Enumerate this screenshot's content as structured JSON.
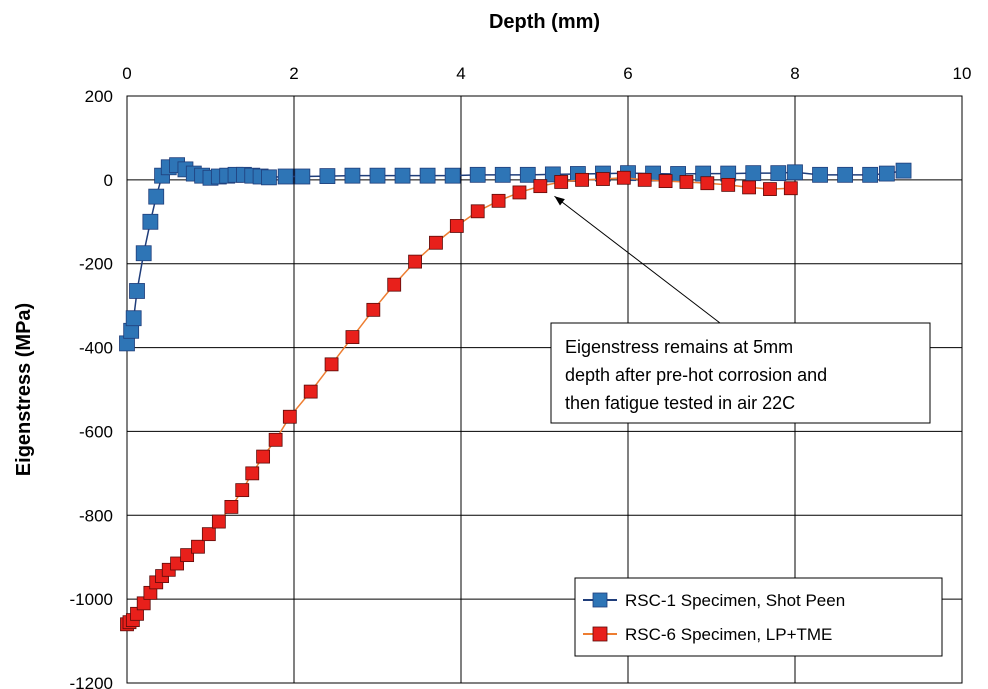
{
  "chart_data": {
    "type": "scatter",
    "title": "",
    "xlabel": "Depth (mm)",
    "ylabel": "Eigenstress (MPa)",
    "xlim": [
      0,
      10
    ],
    "ylim": [
      -1200,
      200
    ],
    "x_ticks": [
      "0",
      "2",
      "4",
      "6",
      "8",
      "10"
    ],
    "y_ticks": [
      "200",
      "0",
      "-200",
      "-400",
      "-600",
      "-800",
      "-1000",
      "-1200"
    ],
    "x_axis_position": "top",
    "grid": true,
    "legend_position": "bottom-right",
    "series": [
      {
        "name": "RSC-1 Specimen, Shot Peen",
        "color": "#2e75b6",
        "line_color": "#1f3d7a",
        "marker": "square",
        "points": [
          [
            0.0,
            -390
          ],
          [
            0.05,
            -360
          ],
          [
            0.08,
            -330
          ],
          [
            0.12,
            -265
          ],
          [
            0.2,
            -175
          ],
          [
            0.28,
            -100
          ],
          [
            0.35,
            -40
          ],
          [
            0.42,
            10
          ],
          [
            0.5,
            30
          ],
          [
            0.6,
            35
          ],
          [
            0.7,
            25
          ],
          [
            0.8,
            15
          ],
          [
            0.9,
            10
          ],
          [
            1.0,
            5
          ],
          [
            1.1,
            8
          ],
          [
            1.2,
            10
          ],
          [
            1.3,
            12
          ],
          [
            1.4,
            12
          ],
          [
            1.5,
            10
          ],
          [
            1.6,
            8
          ],
          [
            1.7,
            6
          ],
          [
            1.9,
            8
          ],
          [
            2.1,
            8
          ],
          [
            2.4,
            9
          ],
          [
            2.7,
            10
          ],
          [
            3.0,
            10
          ],
          [
            3.3,
            10
          ],
          [
            3.6,
            10
          ],
          [
            3.9,
            10
          ],
          [
            4.2,
            12
          ],
          [
            4.5,
            12
          ],
          [
            4.8,
            12
          ],
          [
            5.1,
            13
          ],
          [
            5.4,
            14
          ],
          [
            5.7,
            15
          ],
          [
            6.0,
            16
          ],
          [
            6.3,
            15
          ],
          [
            6.6,
            14
          ],
          [
            6.9,
            15
          ],
          [
            7.2,
            15
          ],
          [
            7.5,
            16
          ],
          [
            7.8,
            16
          ],
          [
            8.0,
            18
          ],
          [
            8.3,
            12
          ],
          [
            8.6,
            12
          ],
          [
            8.9,
            12
          ],
          [
            9.1,
            15
          ],
          [
            9.3,
            22
          ]
        ]
      },
      {
        "name": "RSC-6 Specimen, LP+TME",
        "color": "#e8201b",
        "line_color": "#ed7d31",
        "marker": "square",
        "points": [
          [
            0.0,
            -1060
          ],
          [
            0.03,
            -1055
          ],
          [
            0.07,
            -1050
          ],
          [
            0.12,
            -1035
          ],
          [
            0.2,
            -1010
          ],
          [
            0.28,
            -985
          ],
          [
            0.35,
            -960
          ],
          [
            0.42,
            -945
          ],
          [
            0.5,
            -930
          ],
          [
            0.6,
            -915
          ],
          [
            0.72,
            -895
          ],
          [
            0.85,
            -875
          ],
          [
            0.98,
            -845
          ],
          [
            1.1,
            -815
          ],
          [
            1.25,
            -780
          ],
          [
            1.38,
            -740
          ],
          [
            1.5,
            -700
          ],
          [
            1.63,
            -660
          ],
          [
            1.78,
            -620
          ],
          [
            1.95,
            -565
          ],
          [
            2.2,
            -505
          ],
          [
            2.45,
            -440
          ],
          [
            2.7,
            -375
          ],
          [
            2.95,
            -310
          ],
          [
            3.2,
            -250
          ],
          [
            3.45,
            -195
          ],
          [
            3.7,
            -150
          ],
          [
            3.95,
            -110
          ],
          [
            4.2,
            -75
          ],
          [
            4.45,
            -50
          ],
          [
            4.7,
            -30
          ],
          [
            4.95,
            -15
          ],
          [
            5.2,
            -5
          ],
          [
            5.45,
            0
          ],
          [
            5.7,
            2
          ],
          [
            5.95,
            5
          ],
          [
            6.2,
            0
          ],
          [
            6.45,
            -3
          ],
          [
            6.7,
            -5
          ],
          [
            6.95,
            -8
          ],
          [
            7.2,
            -12
          ],
          [
            7.45,
            -18
          ],
          [
            7.7,
            -22
          ],
          [
            7.95,
            -20
          ]
        ]
      }
    ],
    "annotation": {
      "lines": [
        "Eigenstress remains at 5mm",
        "depth after pre-hot corrosion and",
        "then fatigue tested in air 22C"
      ],
      "arrow_target": [
        5.0,
        -20
      ]
    }
  }
}
